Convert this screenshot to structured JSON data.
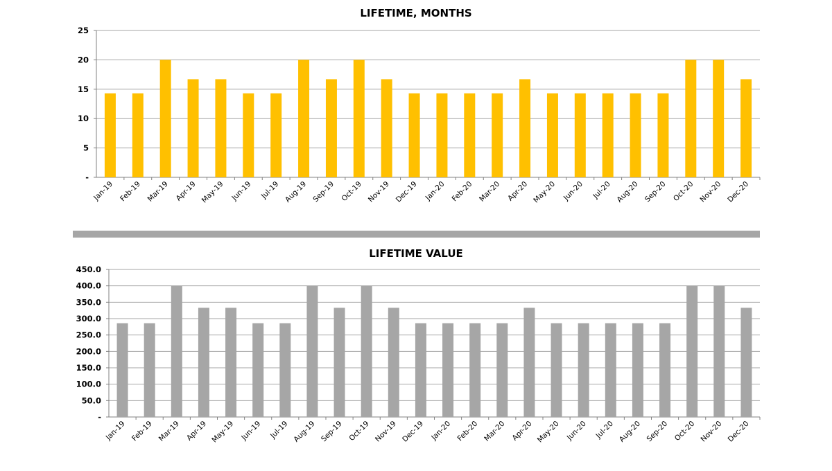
{
  "chart_data": [
    {
      "type": "bar",
      "title": "LIFETIME, MONTHS",
      "xlabel": "",
      "ylabel": "",
      "ylim": [
        0,
        25
      ],
      "yticks": [
        0,
        5,
        10,
        15,
        20,
        25
      ],
      "ytick_labels": [
        "-",
        "5",
        "10",
        "15",
        "20",
        "25"
      ],
      "grid": true,
      "color": "#FFC000",
      "categories": [
        "Jan-19",
        "Feb-19",
        "Mar-19",
        "Apr-19",
        "May-19",
        "Jun-19",
        "Jul-19",
        "Aug-19",
        "Sep-19",
        "Oct-19",
        "Nov-19",
        "Dec-19",
        "Jan-20",
        "Feb-20",
        "Mar-20",
        "Apr-20",
        "May-20",
        "Jun-20",
        "Jul-20",
        "Aug-20",
        "Sep-20",
        "Oct-20",
        "Nov-20",
        "Dec-20"
      ],
      "values": [
        14.3,
        14.3,
        20,
        16.7,
        16.7,
        14.3,
        14.3,
        20,
        16.7,
        20,
        16.7,
        14.3,
        14.3,
        14.3,
        14.3,
        16.7,
        14.3,
        14.3,
        14.3,
        14.3,
        14.3,
        20,
        20,
        16.7
      ]
    },
    {
      "type": "bar",
      "title": "LIFETIME VALUE",
      "xlabel": "",
      "ylabel": "",
      "ylim": [
        0,
        450
      ],
      "yticks": [
        0,
        50,
        100,
        150,
        200,
        250,
        300,
        350,
        400,
        450
      ],
      "ytick_labels": [
        "-",
        "50.0",
        "100.0",
        "150.0",
        "200.0",
        "250.0",
        "300.0",
        "350.0",
        "400.0",
        "450.0"
      ],
      "grid": true,
      "color": "#A6A6A6",
      "categories": [
        "Jan-19",
        "Feb-19",
        "Mar-19",
        "Apr-19",
        "May-19",
        "Jun-19",
        "Jul-19",
        "Aug-19",
        "Sep-19",
        "Oct-19",
        "Nov-19",
        "Dec-19",
        "Jan-20",
        "Feb-20",
        "Mar-20",
        "Apr-20",
        "May-20",
        "Jun-20",
        "Jul-20",
        "Aug-20",
        "Sep-20",
        "Oct-20",
        "Nov-20",
        "Dec-20"
      ],
      "values": [
        286,
        286,
        400,
        333,
        333,
        286,
        286,
        400,
        333,
        400,
        333,
        286,
        286,
        286,
        286,
        333,
        286,
        286,
        286,
        286,
        286,
        400,
        400,
        333
      ]
    }
  ],
  "separator_color": "#A6A6A6"
}
